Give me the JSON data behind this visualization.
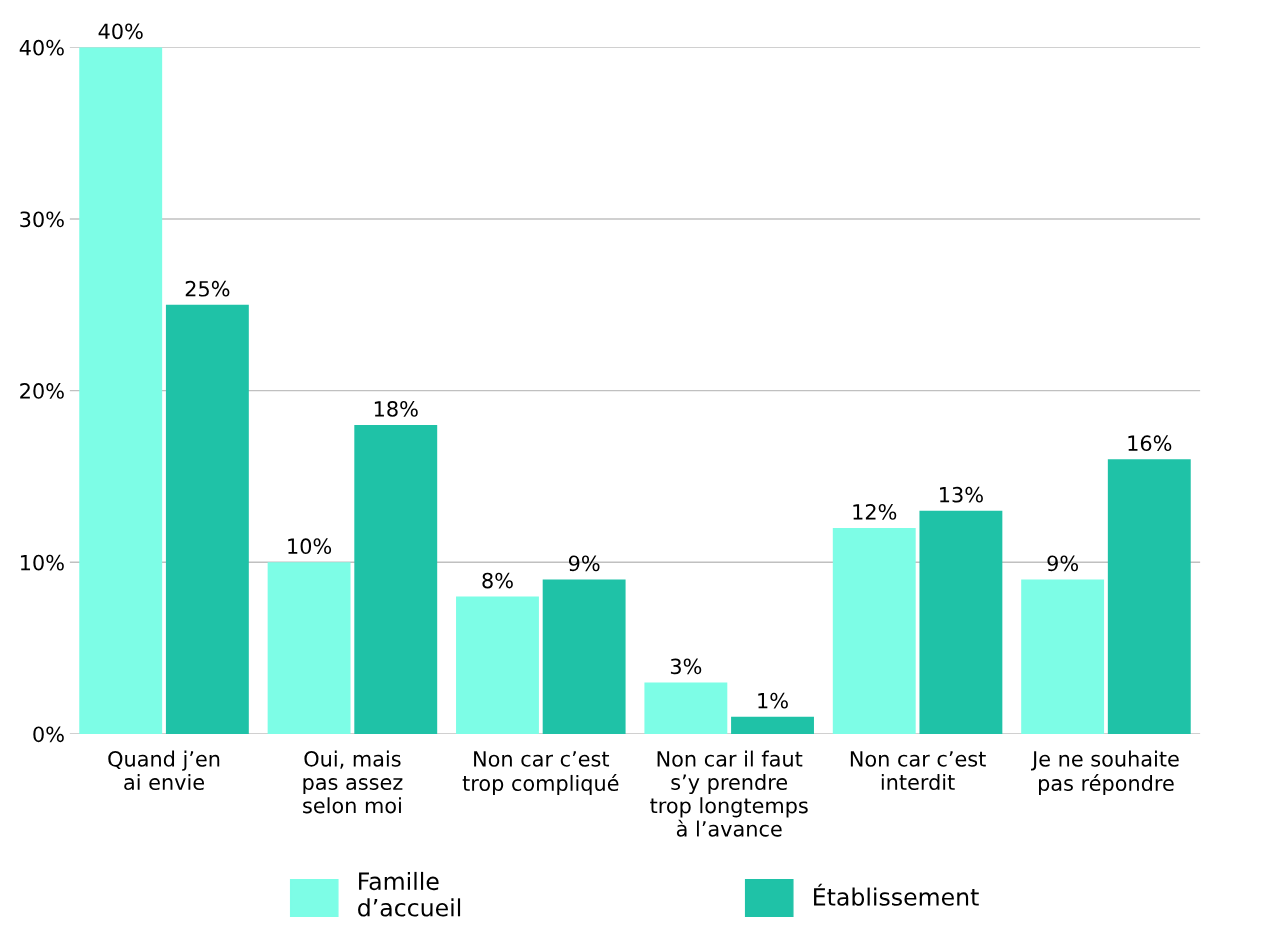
{
  "chart_data": {
    "type": "bar",
    "categories": [
      "Quand j’en\nai envie",
      "Oui, mais\npas assez\nselon moi",
      "Non car c’est\ntrop compliqué",
      "Non car il faut\ns’y prendre\ntrop longtemps\nà l’avance",
      "Non car c’est\ninterdit",
      "Je ne souhaite\npas répondre"
    ],
    "series": [
      {
        "name": "Famille\nd’accueil",
        "color": "#7dfde6",
        "values": [
          40,
          10,
          8,
          3,
          12,
          9
        ],
        "value_labels": [
          "40%",
          "10%",
          "8%",
          "3%",
          "12%",
          "9%"
        ]
      },
      {
        "name": "Établissement",
        "color": "#1fc2a7",
        "values": [
          25,
          18,
          9,
          1,
          13,
          16
        ],
        "value_labels": [
          "25%",
          "18%",
          "9%",
          "1%",
          "13%",
          "16%"
        ]
      }
    ],
    "ylim": [
      0,
      40
    ],
    "yticks": [
      {
        "value": 0,
        "label": "0%"
      },
      {
        "value": 10,
        "label": "10%"
      },
      {
        "value": 20,
        "label": "20%"
      },
      {
        "value": 30,
        "label": "30%"
      },
      {
        "value": 40,
        "label": "40%"
      }
    ],
    "grid": "y",
    "legend": "bottom"
  }
}
